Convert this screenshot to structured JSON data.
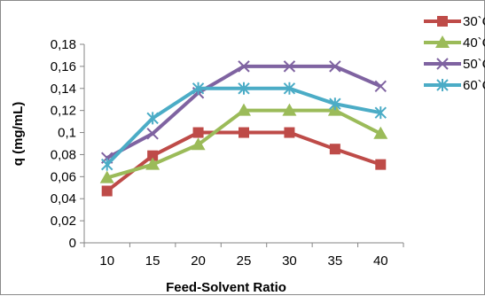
{
  "chart_data": {
    "type": "line",
    "title": "",
    "xlabel": "Feed-Solvent Ratio",
    "ylabel": "q (mg/mL)",
    "x": [
      10,
      15,
      20,
      25,
      30,
      35,
      40
    ],
    "x_tick_labels": [
      "10",
      "15",
      "20",
      "25",
      "30",
      "35",
      "40"
    ],
    "ylim": [
      0,
      0.18
    ],
    "y_tick_labels": [
      "0",
      "0,02",
      "0,04",
      "0,06",
      "0,08",
      "0,1",
      "0,12",
      "0,14",
      "0,16",
      "0,18"
    ],
    "grid": false,
    "legend_position": "right",
    "series": [
      {
        "name": "30`C",
        "color": "#be4b48",
        "marker": "square",
        "values": [
          0.047,
          0.079,
          0.1,
          0.1,
          0.1,
          0.085,
          0.071
        ]
      },
      {
        "name": "40`C",
        "color": "#9bbb59",
        "marker": "triangle",
        "values": [
          0.059,
          0.071,
          0.089,
          0.12,
          0.12,
          0.12,
          0.099
        ]
      },
      {
        "name": "50`C",
        "color": "#7f63a1",
        "marker": "x",
        "values": [
          0.077,
          0.099,
          0.136,
          0.16,
          0.16,
          0.16,
          0.142
        ]
      },
      {
        "name": "60`C",
        "color": "#4bacc6",
        "marker": "star",
        "values": [
          0.071,
          0.113,
          0.14,
          0.14,
          0.14,
          0.126,
          0.118
        ]
      }
    ]
  }
}
